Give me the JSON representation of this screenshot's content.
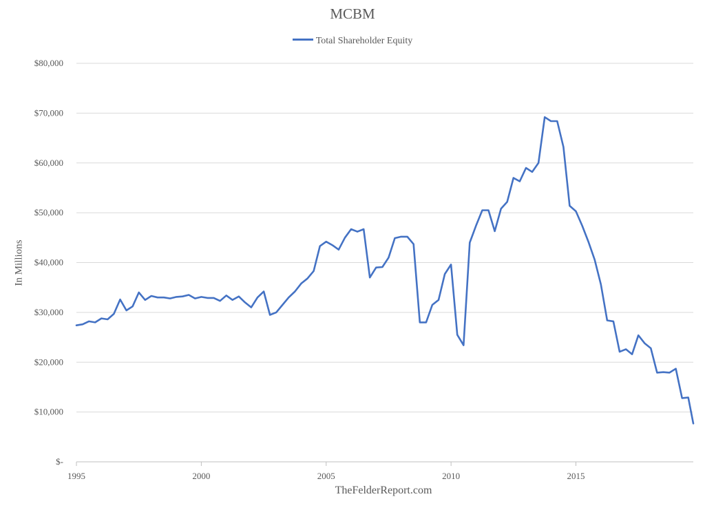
{
  "chart_data": {
    "type": "line",
    "title": "MCBM",
    "xlabel": "TheFelderReport.com",
    "ylabel": "In Millions",
    "legend": "top-center",
    "grid": true,
    "ylim": [
      0,
      80000
    ],
    "xlim": [
      1995,
      2019.7
    ],
    "y_ticks": [
      0,
      10000,
      20000,
      30000,
      40000,
      50000,
      60000,
      70000,
      80000
    ],
    "y_tick_labels": [
      "$-",
      "$10,000",
      "$20,000",
      "$30,000",
      "$40,000",
      "$50,000",
      "$60,000",
      "$70,000",
      "$80,000"
    ],
    "x_ticks": [
      1995,
      2000,
      2005,
      2010,
      2015
    ],
    "x_tick_labels": [
      "1995",
      "2000",
      "2005",
      "2010",
      "2015"
    ],
    "colors": {
      "series": "#4472C4",
      "grid": "#d9d9d9",
      "axis": "#bfbfbf",
      "text": "#595959"
    },
    "series": [
      {
        "name": "Total Shareholder Equity",
        "x": [
          1995.0,
          1995.25,
          1995.5,
          1995.75,
          1996.0,
          1996.25,
          1996.5,
          1996.75,
          1997.0,
          1997.25,
          1997.5,
          1997.75,
          1998.0,
          1998.25,
          1998.5,
          1998.75,
          1999.0,
          1999.25,
          1999.5,
          1999.75,
          2000.0,
          2000.25,
          2000.5,
          2000.75,
          2001.0,
          2001.25,
          2001.5,
          2001.75,
          2002.0,
          2002.25,
          2002.5,
          2002.75,
          2003.0,
          2003.25,
          2003.5,
          2003.75,
          2004.0,
          2004.25,
          2004.5,
          2004.75,
          2005.0,
          2005.25,
          2005.5,
          2005.75,
          2006.0,
          2006.25,
          2006.5,
          2006.75,
          2007.0,
          2007.25,
          2007.5,
          2007.75,
          2008.0,
          2008.25,
          2008.5,
          2008.75,
          2009.0,
          2009.25,
          2009.5,
          2009.75,
          2010.0,
          2010.25,
          2010.5,
          2010.75,
          2011.0,
          2011.25,
          2011.5,
          2011.75,
          2012.0,
          2012.25,
          2012.5,
          2012.75,
          2013.0,
          2013.25,
          2013.5,
          2013.75,
          2014.0,
          2014.25,
          2014.5,
          2014.75,
          2015.0,
          2015.25,
          2015.5,
          2015.75,
          2016.0,
          2016.25,
          2016.5,
          2016.75,
          2017.0,
          2017.25,
          2017.5,
          2017.75,
          2018.0,
          2018.25,
          2018.5,
          2018.75,
          2019.0,
          2019.25,
          2019.5,
          2019.7
        ],
        "values": [
          27400,
          27600,
          28200,
          28000,
          28800,
          28600,
          29700,
          32600,
          30400,
          31200,
          34000,
          32500,
          33300,
          33000,
          33000,
          32800,
          33100,
          33200,
          33500,
          32800,
          33100,
          32900,
          32900,
          32300,
          33400,
          32500,
          33200,
          32000,
          31000,
          33000,
          34200,
          29500,
          30000,
          31500,
          33000,
          34200,
          35800,
          36800,
          38300,
          43300,
          44200,
          43500,
          42600,
          45000,
          46700,
          46200,
          46700,
          37000,
          39000,
          39100,
          41000,
          44900,
          45200,
          45200,
          43700,
          28000,
          28000,
          31500,
          32500,
          37700,
          39600,
          25500,
          23400,
          44000,
          47400,
          50500,
          50500,
          46300,
          50800,
          52200,
          57000,
          56300,
          59000,
          58200,
          60000,
          69200,
          68400,
          68400,
          63200,
          51400,
          50300,
          47400,
          44200,
          40600,
          35600,
          28400,
          28200,
          22100,
          22600,
          21600,
          25400,
          23800,
          22800,
          17900,
          18000,
          17900,
          18700,
          12800,
          12900,
          7700
        ]
      }
    ]
  }
}
